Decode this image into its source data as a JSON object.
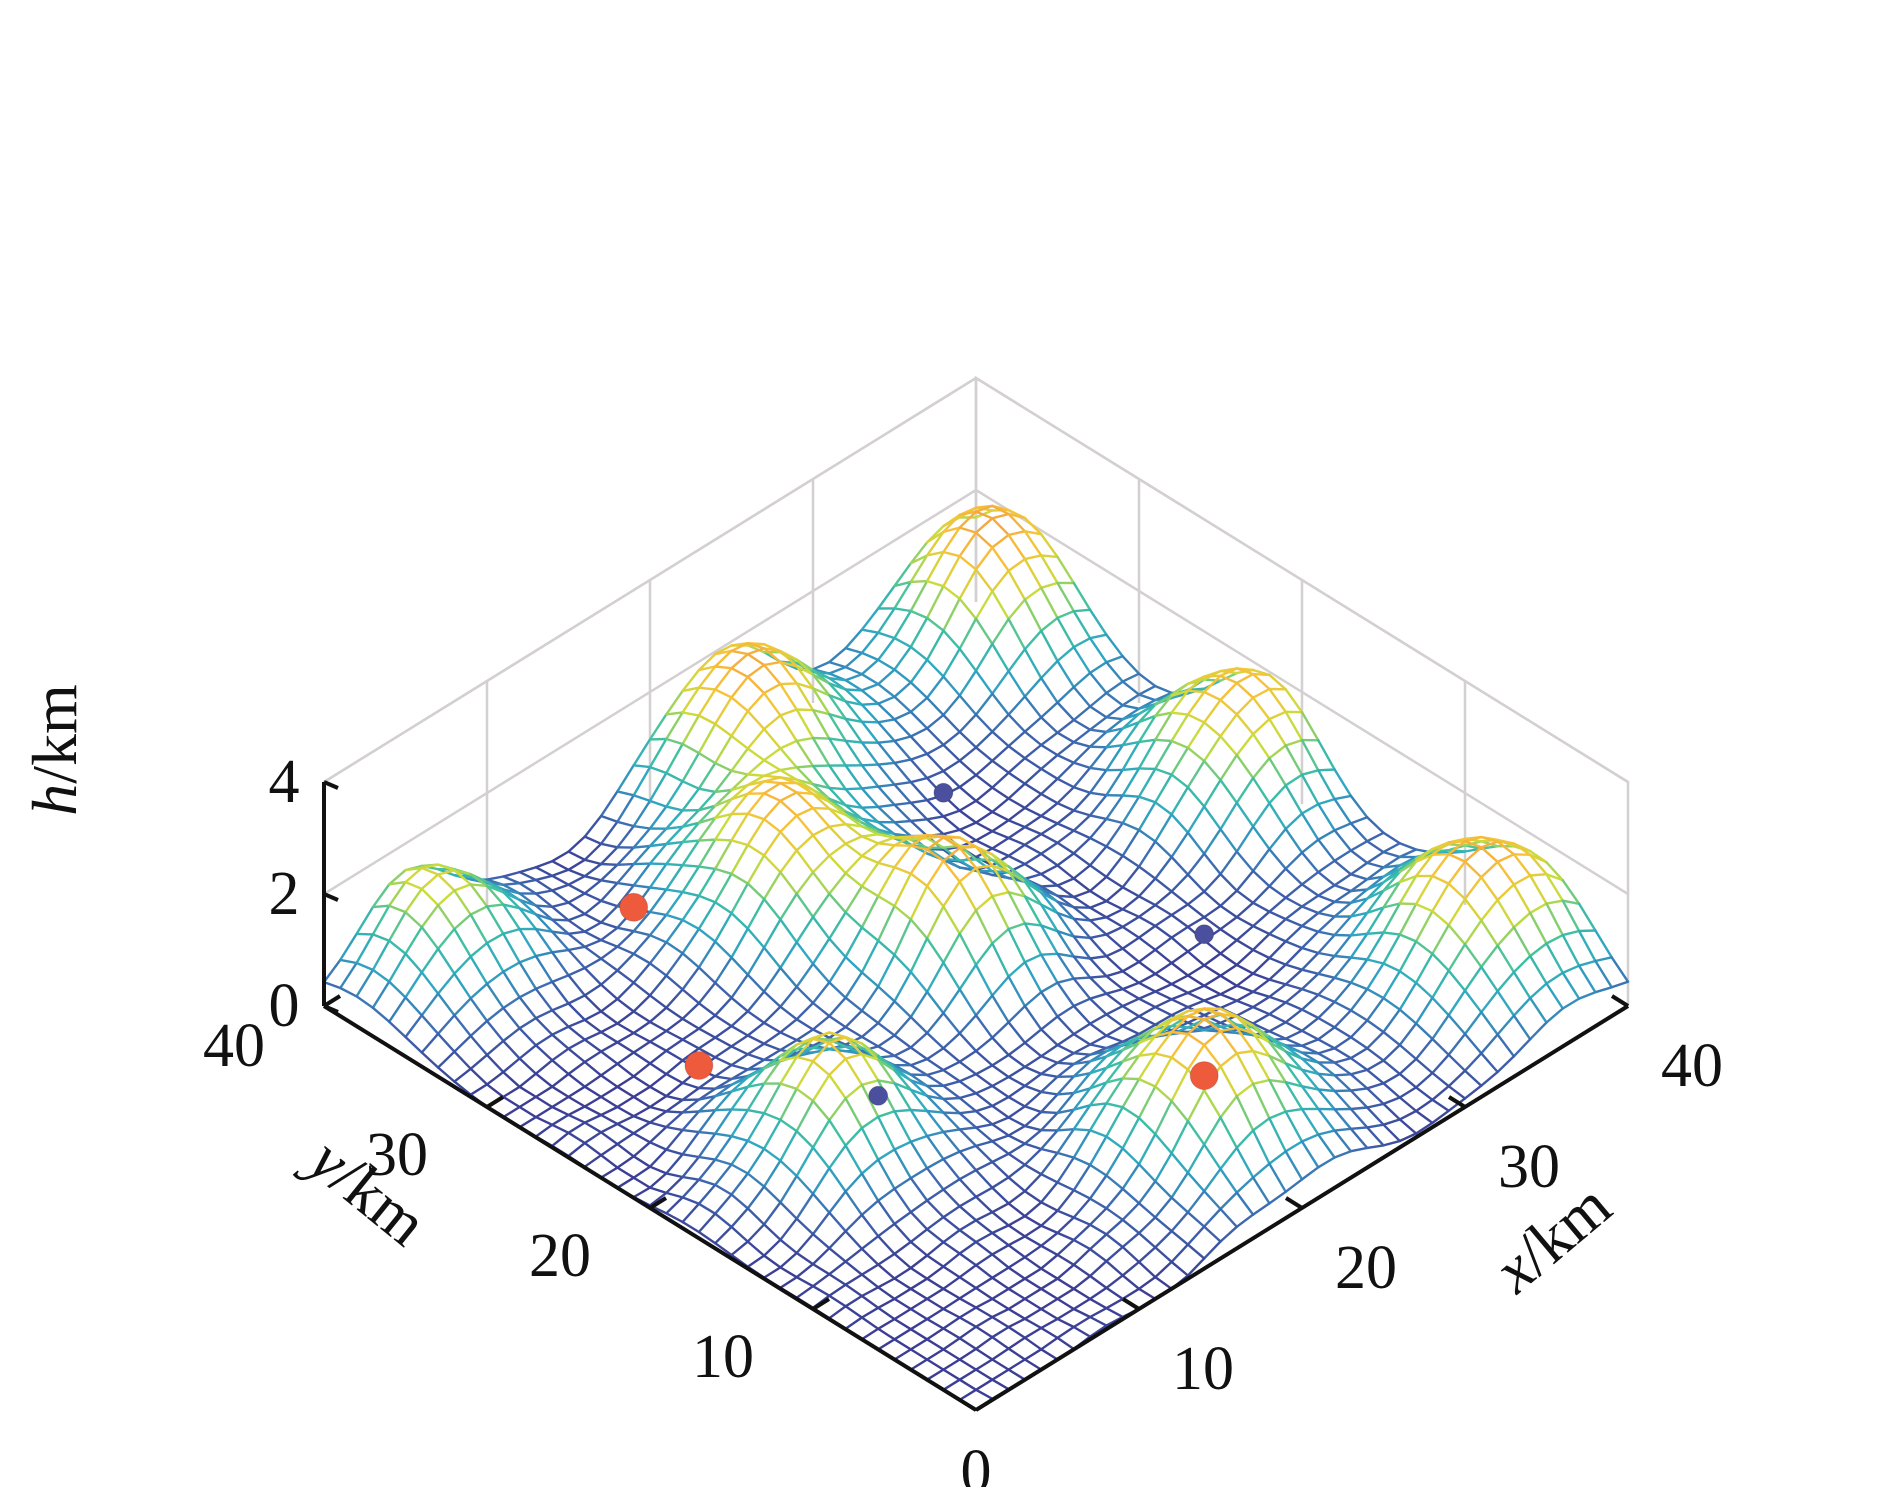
{
  "chart_data": {
    "type": "surface",
    "xlabel": {
      "var": "x",
      "unit": "/km"
    },
    "ylabel": {
      "var": "y",
      "unit": "/km"
    },
    "zlabel": {
      "var": "h",
      "unit": "/km"
    },
    "xlim": [
      0,
      40
    ],
    "ylim": [
      0,
      40
    ],
    "zlim": [
      0,
      4
    ],
    "x_ticks": [
      "0",
      "10",
      "20",
      "30",
      "40"
    ],
    "y_ticks": [
      "10",
      "20",
      "30",
      "40"
    ],
    "z_ticks": [
      "0",
      "2",
      "4"
    ],
    "grid": true,
    "colormap": [
      "#3b3e94",
      "#3e68b0",
      "#2fa6c2",
      "#3fc0a2",
      "#c9dc3c",
      "#f7c23a",
      "#f39a3f"
    ],
    "terrain_peaks": [
      {
        "x": 38,
        "y": 37,
        "h": 2.4,
        "spread": 3.6
      },
      {
        "x": 24,
        "y": 38,
        "h": 2.3,
        "spread": 3.6
      },
      {
        "x": 38,
        "y": 22,
        "h": 2.2,
        "spread": 3.6
      },
      {
        "x": 5,
        "y": 38,
        "h": 1.8,
        "spread": 3.2
      },
      {
        "x": 18,
        "y": 30,
        "h": 2.1,
        "spread": 3.6
      },
      {
        "x": 21,
        "y": 22,
        "h": 2.2,
        "spread": 3.0
      },
      {
        "x": 37,
        "y": 6,
        "h": 2.3,
        "spread": 3.8
      },
      {
        "x": 8,
        "y": 17,
        "h": 2.0,
        "spread": 3.2
      },
      {
        "x": 20,
        "y": 6,
        "h": 2.3,
        "spread": 3.6
      }
    ],
    "markers": [
      {
        "x": 29,
        "y": 31,
        "h": 0.2,
        "color": "#4a4f9e",
        "size": "small"
      },
      {
        "x": 30,
        "y": 16,
        "h": 0.2,
        "color": "#4a4f9e",
        "size": "small"
      },
      {
        "x": 12,
        "y": 18,
        "h": 0.2,
        "color": "#4a4f9e",
        "size": "small"
      },
      {
        "x": 13,
        "y": 34,
        "h": 0.5,
        "color": "#ee5b3c",
        "size": "large"
      },
      {
        "x": 23,
        "y": 9,
        "h": 0.2,
        "color": "#ee5b3c",
        "size": "large"
      },
      {
        "x": 8,
        "y": 25,
        "h": 0.2,
        "color": "#ee5b3c",
        "size": "large"
      }
    ]
  }
}
